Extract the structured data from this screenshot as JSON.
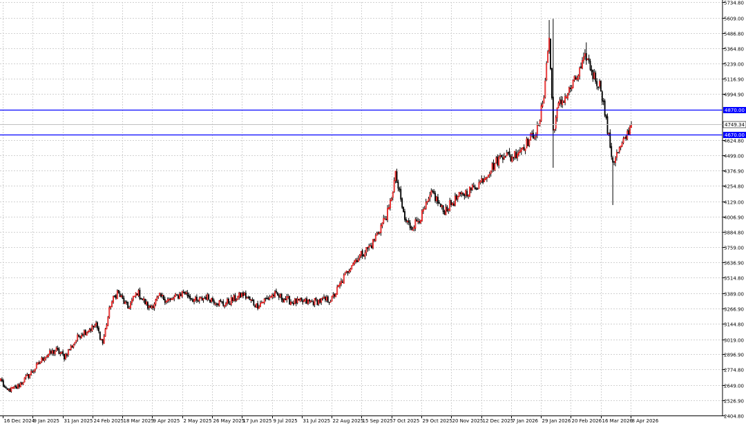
{
  "chart_data": {
    "type": "candlestick",
    "title": "",
    "xlabel": "",
    "ylabel": "",
    "grid": true,
    "ylim": [
      2404.8,
      5734.8
    ],
    "y_ticks": [
      "5734.80",
      "5609.00",
      "5486.80",
      "5364.80",
      "5239.00",
      "5116.90",
      "4994.90",
      "4870.00",
      "4749.34",
      "4670.00",
      "4624.80",
      "4499.00",
      "4376.90",
      "4254.80",
      "4129.00",
      "4006.90",
      "3884.80",
      "3759.00",
      "3636.90",
      "3514.80",
      "3389.00",
      "3266.90",
      "3144.80",
      "3019.00",
      "2896.90",
      "2774.80",
      "2649.00",
      "2526.90",
      "2404.80"
    ],
    "x_ticks": [
      "16 Dec 2024",
      "9 Jan 2025",
      "31 Jan 2025",
      "24 Feb 2025",
      "18 Mar 2025",
      "9 Apr 2025",
      "2 May 2025",
      "26 May 2025",
      "17 Jun 2025",
      "9 Jul 2025",
      "31 Jul 2025",
      "22 Aug 2025",
      "15 Sep 2025",
      "7 Oct 2025",
      "29 Oct 2025",
      "20 Nov 2025",
      "12 Dec 2025",
      "7 Jan 2026",
      "29 Jan 2026",
      "20 Feb 2026",
      "16 Mar 2026",
      "8 Apr 2026"
    ],
    "levels": [
      {
        "label": "4870.00",
        "value": 4870.0,
        "color": "#0000ff"
      },
      {
        "label": "4670.00",
        "value": 4670.0,
        "color": "#0000ff"
      }
    ],
    "current_price": {
      "label": "4749.34",
      "value": 4749.34
    },
    "anchors": [
      {
        "i": 0,
        "c": 2700
      },
      {
        "i": 4,
        "c": 2600
      },
      {
        "i": 12,
        "c": 2630
      },
      {
        "i": 24,
        "c": 2760
      },
      {
        "i": 33,
        "c": 2880
      },
      {
        "i": 42,
        "c": 2930
      },
      {
        "i": 48,
        "c": 2880
      },
      {
        "i": 60,
        "c": 3060
      },
      {
        "i": 72,
        "c": 3130
      },
      {
        "i": 77,
        "c": 2990
      },
      {
        "i": 83,
        "c": 3300
      },
      {
        "i": 88,
        "c": 3400
      },
      {
        "i": 96,
        "c": 3270
      },
      {
        "i": 103,
        "c": 3400
      },
      {
        "i": 112,
        "c": 3270
      },
      {
        "i": 120,
        "c": 3360
      },
      {
        "i": 128,
        "c": 3330
      },
      {
        "i": 138,
        "c": 3400
      },
      {
        "i": 148,
        "c": 3320
      },
      {
        "i": 155,
        "c": 3360
      },
      {
        "i": 168,
        "c": 3300
      },
      {
        "i": 183,
        "c": 3380
      },
      {
        "i": 193,
        "c": 3290
      },
      {
        "i": 206,
        "c": 3380
      },
      {
        "i": 220,
        "c": 3320
      },
      {
        "i": 235,
        "c": 3320
      },
      {
        "i": 250,
        "c": 3340
      },
      {
        "i": 265,
        "c": 3630
      },
      {
        "i": 280,
        "c": 3780
      },
      {
        "i": 293,
        "c": 4060
      },
      {
        "i": 298,
        "c": 4340
      },
      {
        "i": 305,
        "c": 3980
      },
      {
        "i": 310,
        "c": 3920
      },
      {
        "i": 318,
        "c": 4020
      },
      {
        "i": 326,
        "c": 4200
      },
      {
        "i": 334,
        "c": 4050
      },
      {
        "i": 345,
        "c": 4160
      },
      {
        "i": 360,
        "c": 4260
      },
      {
        "i": 375,
        "c": 4460
      },
      {
        "i": 380,
        "c": 4520
      },
      {
        "i": 385,
        "c": 4480
      },
      {
        "i": 398,
        "c": 4610
      },
      {
        "i": 406,
        "c": 4720
      },
      {
        "i": 410,
        "c": 5000
      },
      {
        "i": 414,
        "c": 5450
      },
      {
        "i": 417,
        "c": 4700
      },
      {
        "i": 421,
        "c": 4900
      },
      {
        "i": 428,
        "c": 5000
      },
      {
        "i": 436,
        "c": 5150
      },
      {
        "i": 442,
        "c": 5300
      },
      {
        "i": 447,
        "c": 5150
      },
      {
        "i": 453,
        "c": 5050
      },
      {
        "i": 458,
        "c": 4700
      },
      {
        "i": 462,
        "c": 4450
      },
      {
        "i": 470,
        "c": 4600
      },
      {
        "i": 476,
        "c": 4749.34
      }
    ]
  }
}
